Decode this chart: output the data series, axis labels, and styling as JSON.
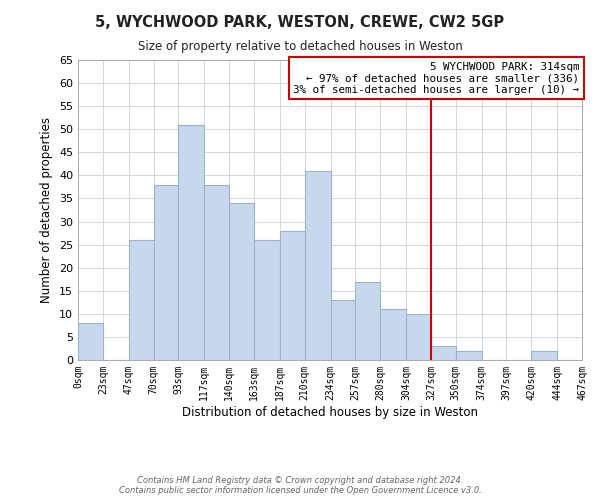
{
  "title": "5, WYCHWOOD PARK, WESTON, CREWE, CW2 5GP",
  "subtitle": "Size of property relative to detached houses in Weston",
  "xlabel": "Distribution of detached houses by size in Weston",
  "ylabel": "Number of detached properties",
  "bin_edges": [
    0,
    23,
    47,
    70,
    93,
    117,
    140,
    163,
    187,
    210,
    234,
    257,
    280,
    304,
    327,
    350,
    374,
    397,
    420,
    444,
    467
  ],
  "bin_counts": [
    8,
    0,
    26,
    38,
    51,
    38,
    34,
    26,
    28,
    41,
    13,
    17,
    11,
    10,
    3,
    2,
    0,
    0,
    2,
    0
  ],
  "bar_color": "#c8d8ec",
  "bar_edge_color": "#9ab4cc",
  "vline_x": 327,
  "vline_color": "#cc0000",
  "ylim": [
    0,
    65
  ],
  "yticks": [
    0,
    5,
    10,
    15,
    20,
    25,
    30,
    35,
    40,
    45,
    50,
    55,
    60,
    65
  ],
  "tick_labels": [
    "0sqm",
    "23sqm",
    "47sqm",
    "70sqm",
    "93sqm",
    "117sqm",
    "140sqm",
    "163sqm",
    "187sqm",
    "210sqm",
    "234sqm",
    "257sqm",
    "280sqm",
    "304sqm",
    "327sqm",
    "350sqm",
    "374sqm",
    "397sqm",
    "420sqm",
    "444sqm",
    "467sqm"
  ],
  "annotation_title": "5 WYCHWOOD PARK: 314sqm",
  "annotation_line1": "← 97% of detached houses are smaller (336)",
  "annotation_line2": "3% of semi-detached houses are larger (10) →",
  "annotation_box_color": "#ffffff",
  "annotation_box_edge": "#cc0000",
  "footer_line1": "Contains HM Land Registry data © Crown copyright and database right 2024.",
  "footer_line2": "Contains public sector information licensed under the Open Government Licence v3.0.",
  "bg_color": "#ffffff",
  "grid_color": "#d0d8e0"
}
